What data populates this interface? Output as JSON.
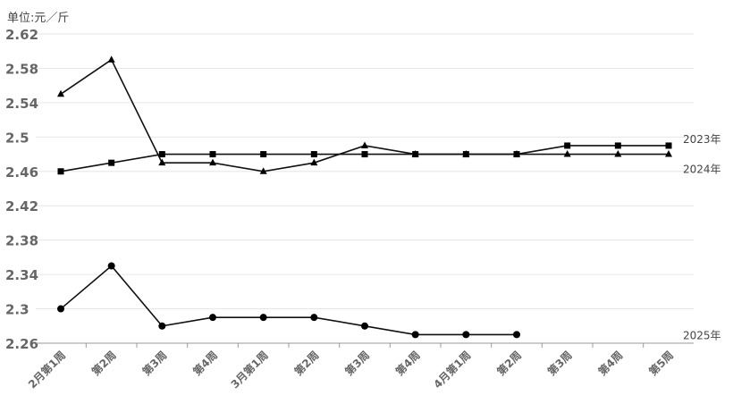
{
  "unit_label": "单位:元／斤",
  "chart_data": {
    "type": "line",
    "categories": [
      "2月第1周",
      "第2周",
      "第3周",
      "第4周",
      "3月第1周",
      "第2周",
      "第3周",
      "第4周",
      "4月第1周",
      "第2周",
      "第3周",
      "第4周",
      "第5周"
    ],
    "ylim": [
      2.26,
      2.62
    ],
    "yticks": [
      2.26,
      2.3,
      2.34,
      2.38,
      2.42,
      2.46,
      2.5,
      2.54,
      2.58,
      2.62
    ],
    "ytick_labels": [
      "2.26",
      "2.3",
      "2.34",
      "2.38",
      "2.42",
      "2.46",
      "2.5",
      "2.54",
      "2.58",
      "2.62"
    ],
    "grid": true,
    "legend": "right-end labels",
    "series": [
      {
        "name": "2023年",
        "marker": "square",
        "values": [
          2.46,
          2.47,
          2.48,
          2.48,
          2.48,
          2.48,
          2.48,
          2.48,
          2.48,
          2.48,
          2.49,
          2.49,
          2.49
        ]
      },
      {
        "name": "2024年",
        "marker": "triangle",
        "values": [
          2.55,
          2.59,
          2.47,
          2.47,
          2.46,
          2.47,
          2.49,
          2.48,
          2.48,
          2.48,
          2.48,
          2.48,
          2.48
        ]
      },
      {
        "name": "2025年",
        "marker": "circle",
        "values": [
          2.3,
          2.35,
          2.28,
          2.29,
          2.29,
          2.29,
          2.28,
          2.27,
          2.27,
          2.27,
          null,
          null,
          null
        ]
      }
    ]
  }
}
